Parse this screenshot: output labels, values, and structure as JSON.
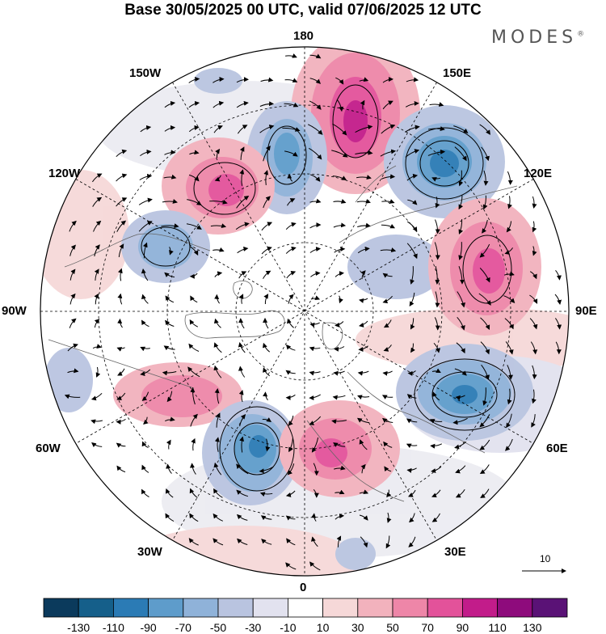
{
  "title": "Base 30/05/2025 00 UTC, valid 07/06/2025 12 UTC",
  "brand": "MODES",
  "brand_mark": "®",
  "longitude_labels": {
    "lon_180": "180",
    "lon_150W": "150W",
    "lon_150E": "150E",
    "lon_120W": "120W",
    "lon_120E": "120E",
    "lon_90W": "90W",
    "lon_90E": "90E",
    "lon_60W": "60W",
    "lon_60E": "60E",
    "lon_30W": "30W",
    "lon_30E": "30E",
    "lon_0": "0"
  },
  "reference_vector_label": "10",
  "colorbar": {
    "labels": [
      "-130",
      "-110",
      "-90",
      "-70",
      "-50",
      "-30",
      "-10",
      "10",
      "30",
      "50",
      "70",
      "90",
      "110",
      "130"
    ],
    "colors": [
      "#0b3a5c",
      "#155f8a",
      "#2b7bb5",
      "#5e9ccb",
      "#8fb2d9",
      "#b9c4e0",
      "#e2e2ef",
      "#ffffff",
      "#f6d8d8",
      "#f2b2bd",
      "#ee86a8",
      "#e3529a",
      "#c21c8a",
      "#8e0b7c",
      "#5a1276"
    ]
  },
  "anomaly_centers": [
    {
      "name": "pos-north-pacific",
      "sign": "positive",
      "level": 90
    },
    {
      "name": "neg-bering",
      "sign": "negative",
      "level": -70
    },
    {
      "name": "neg-east-siberia",
      "sign": "negative",
      "level": -90
    },
    {
      "name": "pos-alaska",
      "sign": "positive",
      "level": 70
    },
    {
      "name": "neg-canada",
      "sign": "negative",
      "level": -50
    },
    {
      "name": "pos-central-siberia",
      "sign": "positive",
      "level": 70
    },
    {
      "name": "neg-west-siberia",
      "sign": "negative",
      "level": -90
    },
    {
      "name": "pos-greenland-labrador",
      "sign": "positive",
      "level": 50
    },
    {
      "name": "neg-north-atlantic",
      "sign": "negative",
      "level": -90
    },
    {
      "name": "pos-scandinavia",
      "sign": "positive",
      "level": 70
    }
  ]
}
